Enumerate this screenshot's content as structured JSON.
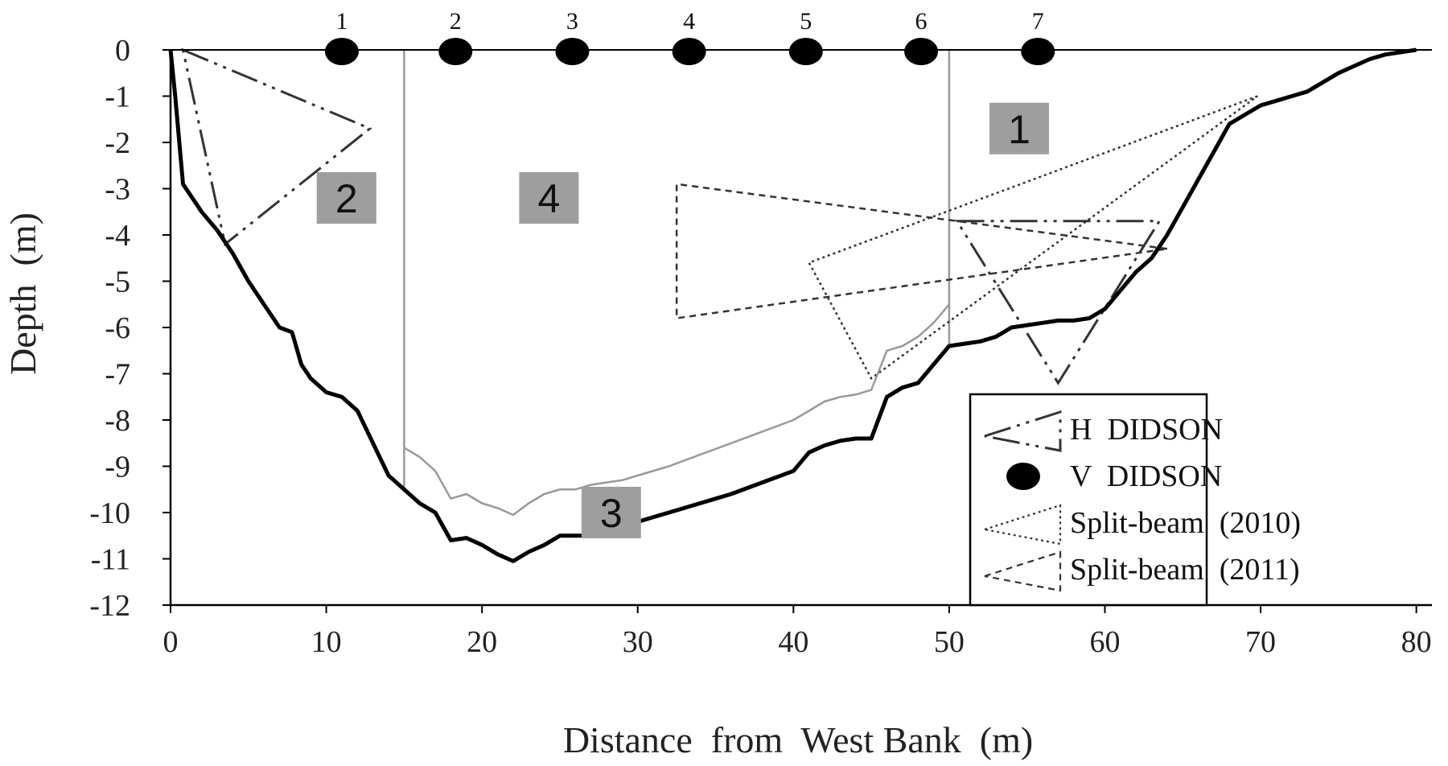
{
  "chart_data": {
    "type": "line",
    "xlabel": "Distance  from  West Bank  (m)",
    "ylabel": "Depth  (m)",
    "xlim": [
      0,
      81
    ],
    "ylim": [
      -12,
      0
    ],
    "x_ticks": [
      0,
      10,
      20,
      30,
      40,
      50,
      60,
      70,
      80
    ],
    "y_ticks": [
      0,
      -1,
      -2,
      -3,
      -4,
      -5,
      -6,
      -7,
      -8,
      -9,
      -10,
      -11,
      -12
    ],
    "grid": false,
    "legend_placement": "bottom-right",
    "series": [
      {
        "style": "bottom-profile",
        "color": "#000000",
        "points": [
          [
            0,
            0
          ],
          [
            0.3,
            -1
          ],
          [
            0.8,
            -2.9
          ],
          [
            2,
            -3.5
          ],
          [
            3,
            -3.9
          ],
          [
            4,
            -4.4
          ],
          [
            5,
            -5
          ],
          [
            6,
            -5.5
          ],
          [
            7,
            -6
          ],
          [
            7.8,
            -6.1
          ],
          [
            8.4,
            -6.8
          ],
          [
            9,
            -7.1
          ],
          [
            10,
            -7.4
          ],
          [
            11,
            -7.5
          ],
          [
            12,
            -7.8
          ],
          [
            13,
            -8.5
          ],
          [
            14,
            -9.2
          ],
          [
            15,
            -9.5
          ],
          [
            16,
            -9.8
          ],
          [
            17,
            -10
          ],
          [
            18,
            -10.6
          ],
          [
            19,
            -10.55
          ],
          [
            20,
            -10.7
          ],
          [
            21,
            -10.9
          ],
          [
            22,
            -11.05
          ],
          [
            23,
            -10.85
          ],
          [
            24,
            -10.7
          ],
          [
            25,
            -10.5
          ],
          [
            26,
            -10.5
          ],
          [
            27,
            -10.5
          ],
          [
            28,
            -10.4
          ],
          [
            29,
            -10.3
          ],
          [
            30,
            -10.2
          ],
          [
            32,
            -10
          ],
          [
            34,
            -9.8
          ],
          [
            36,
            -9.6
          ],
          [
            38,
            -9.35
          ],
          [
            40,
            -9.1
          ],
          [
            41,
            -8.7
          ],
          [
            42,
            -8.55
          ],
          [
            43,
            -8.45
          ],
          [
            44,
            -8.4
          ],
          [
            45,
            -8.4
          ],
          [
            46,
            -7.5
          ],
          [
            47,
            -7.3
          ],
          [
            48,
            -7.2
          ],
          [
            49,
            -6.8
          ],
          [
            50,
            -6.4
          ],
          [
            51,
            -6.35
          ],
          [
            52,
            -6.3
          ],
          [
            53,
            -6.2
          ],
          [
            54,
            -6
          ],
          [
            55,
            -5.95
          ],
          [
            56,
            -5.9
          ],
          [
            57,
            -5.85
          ],
          [
            58,
            -5.85
          ],
          [
            59,
            -5.8
          ],
          [
            60,
            -5.6
          ],
          [
            61,
            -5.2
          ],
          [
            62,
            -4.8
          ],
          [
            63,
            -4.5
          ],
          [
            64,
            -4
          ],
          [
            65,
            -3.4
          ],
          [
            66,
            -2.8
          ],
          [
            67,
            -2.2
          ],
          [
            68,
            -1.6
          ],
          [
            69,
            -1.4
          ],
          [
            70,
            -1.2
          ],
          [
            71,
            -1.1
          ],
          [
            72,
            -1
          ],
          [
            73,
            -0.9
          ],
          [
            74,
            -0.7
          ],
          [
            75,
            -0.5
          ],
          [
            76,
            -0.35
          ],
          [
            77,
            -0.2
          ],
          [
            78,
            -0.1
          ],
          [
            79,
            -0.05
          ],
          [
            80,
            0
          ]
        ]
      },
      {
        "style": "upper-profile",
        "color": "#999999",
        "points": [
          [
            15,
            -8.6
          ],
          [
            16,
            -8.8
          ],
          [
            17,
            -9.1
          ],
          [
            18,
            -9.7
          ],
          [
            19,
            -9.6
          ],
          [
            20,
            -9.8
          ],
          [
            21,
            -9.9
          ],
          [
            22,
            -10.05
          ],
          [
            23,
            -9.8
          ],
          [
            24,
            -9.6
          ],
          [
            25,
            -9.5
          ],
          [
            26,
            -9.5
          ],
          [
            27,
            -9.4
          ],
          [
            28,
            -9.35
          ],
          [
            29,
            -9.3
          ],
          [
            30,
            -9.2
          ],
          [
            32,
            -9
          ],
          [
            34,
            -8.75
          ],
          [
            36,
            -8.5
          ],
          [
            38,
            -8.25
          ],
          [
            40,
            -8
          ],
          [
            41,
            -7.8
          ],
          [
            42,
            -7.6
          ],
          [
            43,
            -7.5
          ],
          [
            44,
            -7.45
          ],
          [
            45,
            -7.35
          ],
          [
            46,
            -6.5
          ],
          [
            47,
            -6.4
          ],
          [
            48,
            -6.2
          ],
          [
            49,
            -5.9
          ],
          [
            50,
            -5.5
          ]
        ]
      }
    ],
    "zone_dividers": [
      15,
      50
    ],
    "zones": [
      {
        "label": "1",
        "x": 54.5,
        "y": -1.7
      },
      {
        "label": "2",
        "x": 11.3,
        "y": -3.2
      },
      {
        "label": "3",
        "x": 28.3,
        "y": -10
      },
      {
        "label": "4",
        "x": 24.3,
        "y": -3.2
      }
    ],
    "stations": [
      {
        "label": "1",
        "x": 11
      },
      {
        "label": "2",
        "x": 18.3
      },
      {
        "label": "3",
        "x": 25.8
      },
      {
        "label": "4",
        "x": 33.3
      },
      {
        "label": "5",
        "x": 40.8
      },
      {
        "label": "6",
        "x": 48.2
      },
      {
        "label": "7",
        "x": 55.7
      }
    ],
    "beams": [
      {
        "style": "h-didson",
        "points": [
          [
            0.8,
            0
          ],
          [
            12.8,
            -1.7
          ],
          [
            3.5,
            -4.2
          ]
        ]
      },
      {
        "style": "h-didson",
        "points": [
          [
            50.5,
            -3.7
          ],
          [
            63.5,
            -3.7
          ],
          [
            57,
            -7.2
          ]
        ]
      },
      {
        "style": "split-2010",
        "points": [
          [
            69.8,
            -1
          ],
          [
            41,
            -4.6
          ],
          [
            45,
            -7.1
          ]
        ]
      },
      {
        "style": "split-2011",
        "points": [
          [
            64,
            -4.3
          ],
          [
            32.5,
            -2.9
          ],
          [
            32.5,
            -5.8
          ]
        ]
      }
    ],
    "legend": [
      {
        "style": "h-didson",
        "label": "H  DIDSON"
      },
      {
        "style": "v-didson",
        "label": "V  DIDSON"
      },
      {
        "style": "split-2010",
        "label": "Split-beam  (2010)"
      },
      {
        "style": "split-2011",
        "label": "Split-beam  (2011)"
      }
    ],
    "colors": {
      "profile": "#000000",
      "upper_profile": "#999999",
      "divider": "#999999",
      "zone_box": "#9e9e9e",
      "beam": "#333333"
    }
  }
}
